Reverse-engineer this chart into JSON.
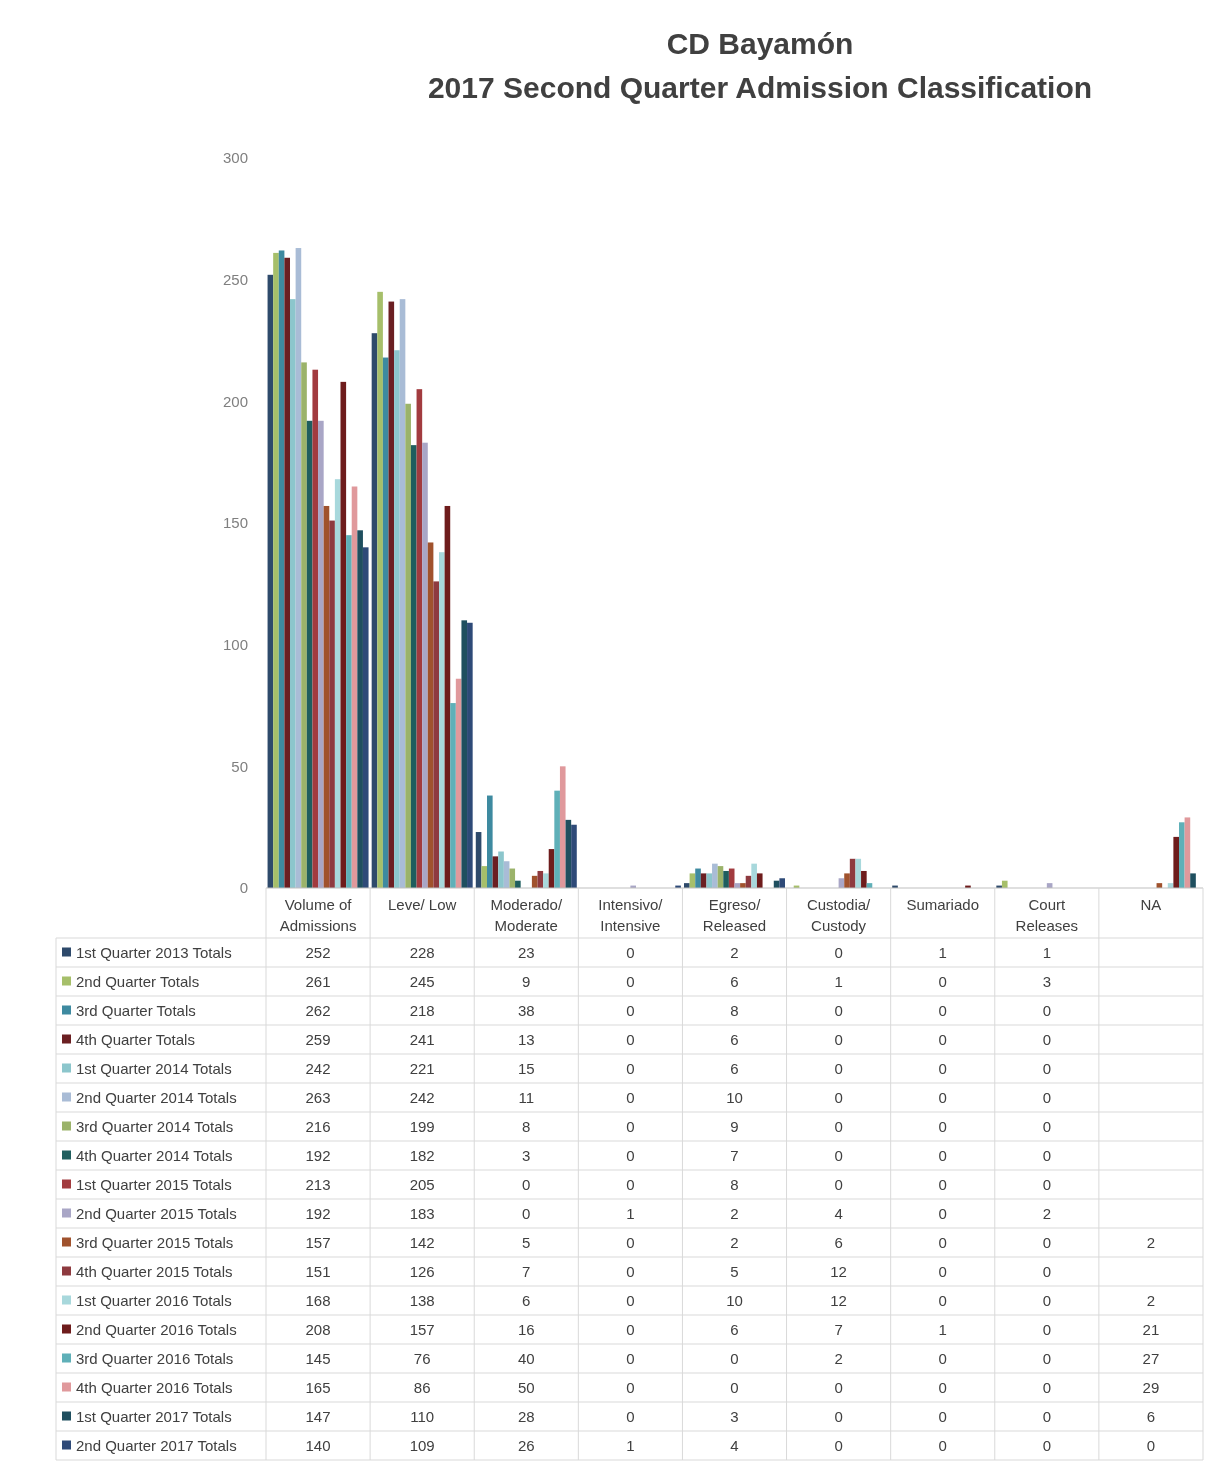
{
  "chart_data": {
    "type": "bar",
    "title": "CD Bayamón",
    "subtitle": "2017 Second Quarter Admission Classification",
    "categories": [
      "Volume of Admissions",
      "Leve/ Low",
      "Moderado/ Moderate",
      "Intensivo/ Intensive",
      "Egreso/ Released",
      "Custodia/ Custody",
      "Sumariado",
      "Court Releases",
      "NA"
    ],
    "ylim": [
      0,
      300
    ],
    "yticks": [
      0,
      50,
      100,
      150,
      200,
      250,
      300
    ],
    "grid": false,
    "legend": "bottom",
    "data_labels": true,
    "series": [
      {
        "name": "1st Quarter 2013 Totals",
        "color": "#2e4a6b",
        "values": [
          252,
          228,
          23,
          0,
          2,
          0,
          1,
          1,
          null
        ]
      },
      {
        "name": "2nd Quarter Totals",
        "color": "#a6bf6a",
        "values": [
          261,
          245,
          9,
          0,
          6,
          1,
          0,
          3,
          null
        ]
      },
      {
        "name": "3rd Quarter Totals",
        "color": "#3e8aa0",
        "values": [
          262,
          218,
          38,
          0,
          8,
          0,
          0,
          0,
          null
        ]
      },
      {
        "name": "4th Quarter Totals",
        "color": "#6b1f22",
        "values": [
          259,
          241,
          13,
          0,
          6,
          0,
          0,
          0,
          null
        ]
      },
      {
        "name": "1st Quarter 2014 Totals",
        "color": "#8cc6cc",
        "values": [
          242,
          221,
          15,
          0,
          6,
          0,
          0,
          0,
          null
        ]
      },
      {
        "name": "2nd Quarter 2014 Totals",
        "color": "#a9bcd6",
        "values": [
          263,
          242,
          11,
          0,
          10,
          0,
          0,
          0,
          null
        ]
      },
      {
        "name": "3rd Quarter 2014 Totals",
        "color": "#9bb36a",
        "values": [
          216,
          199,
          8,
          0,
          9,
          0,
          0,
          0,
          null
        ]
      },
      {
        "name": "4th Quarter 2014 Totals",
        "color": "#1f5e5e",
        "values": [
          192,
          182,
          3,
          0,
          7,
          0,
          0,
          0,
          null
        ]
      },
      {
        "name": "1st Quarter 2015 Totals",
        "color": "#a23b3f",
        "values": [
          213,
          205,
          0,
          0,
          8,
          0,
          0,
          0,
          null
        ]
      },
      {
        "name": "2nd Quarter 2015 Totals",
        "color": "#a9a6c6",
        "values": [
          192,
          183,
          0,
          1,
          2,
          4,
          0,
          2,
          null
        ]
      },
      {
        "name": "3rd Quarter 2015 Totals",
        "color": "#a0522d",
        "values": [
          157,
          142,
          5,
          0,
          2,
          6,
          0,
          0,
          2
        ]
      },
      {
        "name": "4th Quarter 2015 Totals",
        "color": "#8e3a3f",
        "values": [
          151,
          126,
          7,
          0,
          5,
          12,
          0,
          0,
          null
        ]
      },
      {
        "name": "1st Quarter 2016 Totals",
        "color": "#a8d8dc",
        "values": [
          168,
          138,
          6,
          0,
          10,
          12,
          0,
          0,
          2
        ]
      },
      {
        "name": "2nd Quarter 2016 Totals",
        "color": "#6e1c1c",
        "values": [
          208,
          157,
          16,
          0,
          6,
          7,
          1,
          0,
          21
        ]
      },
      {
        "name": "3rd Quarter 2016 Totals",
        "color": "#5fb0b8",
        "values": [
          145,
          76,
          40,
          0,
          0,
          2,
          0,
          0,
          27
        ]
      },
      {
        "name": "4th Quarter 2016 Totals",
        "color": "#e0999c",
        "values": [
          165,
          86,
          50,
          0,
          0,
          0,
          0,
          0,
          29
        ]
      },
      {
        "name": "1st Quarter 2017 Totals",
        "color": "#1f4f5f",
        "values": [
          147,
          110,
          28,
          0,
          3,
          0,
          0,
          0,
          6
        ]
      },
      {
        "name": "2nd Quarter 2017 Totals",
        "color": "#2e4a78",
        "values": [
          140,
          109,
          26,
          1,
          4,
          0,
          0,
          0,
          0
        ]
      }
    ]
  }
}
